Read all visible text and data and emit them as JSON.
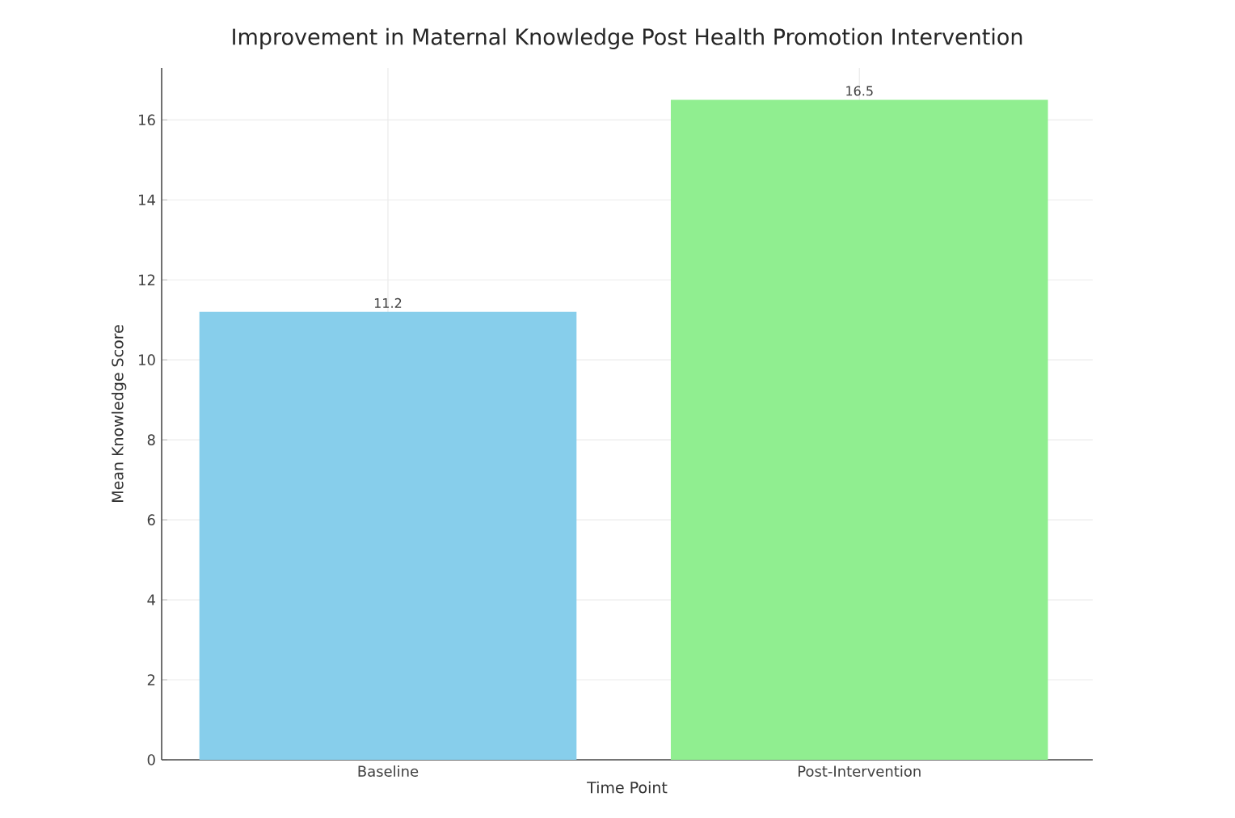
{
  "chart_data": {
    "type": "bar",
    "title": "Improvement in Maternal Knowledge Post Health Promotion Intervention",
    "xlabel": "Time Point",
    "ylabel": "Mean Knowledge Score",
    "categories": [
      "Baseline",
      "Post-Intervention"
    ],
    "values": [
      11.2,
      16.5
    ],
    "colors": [
      "#87ceeb",
      "#90ee90"
    ],
    "ylim": [
      0,
      17.3
    ],
    "yticks": [
      0,
      2,
      4,
      6,
      8,
      10,
      12,
      14,
      16
    ],
    "grid": true,
    "data_labels": true
  }
}
